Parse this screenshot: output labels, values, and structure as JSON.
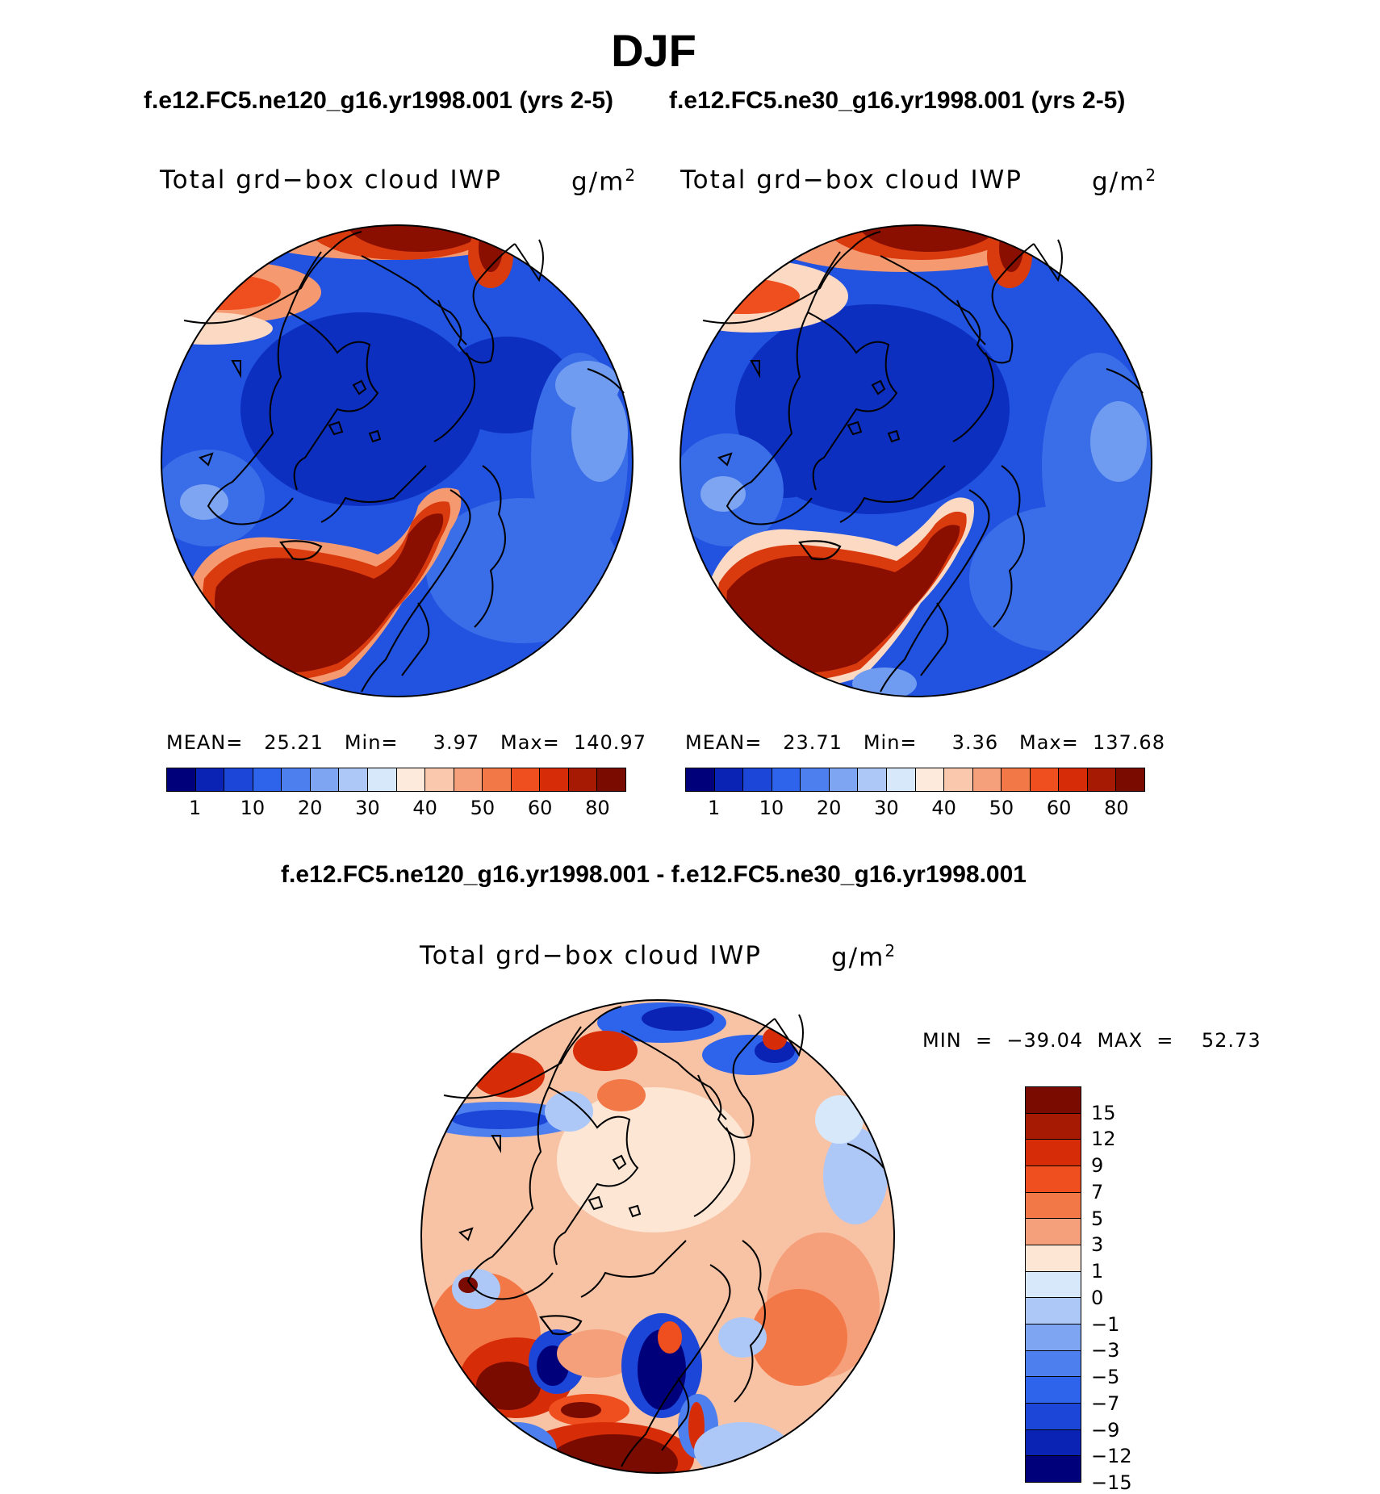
{
  "figure": {
    "title": "DJF",
    "case1_title": "f.e12.FC5.ne120_g16.yr1998.001 (yrs 2-5)",
    "case2_title": "f.e12.FC5.ne30_g16.yr1998.001 (yrs 2-5)",
    "diff_title": "f.e12.FC5.ne120_g16.yr1998.001 - f.e12.FC5.ne30_g16.yr1998.001"
  },
  "panels": [
    {
      "variable": "Total grd−box cloud IWP",
      "units_base": "g/m",
      "units_exp": "2",
      "stats": "MEAN=   25.21   Min=     3.97   Max=  140.97"
    },
    {
      "variable": "Total grd−box cloud IWP",
      "units_base": "g/m",
      "units_exp": "2",
      "stats": "MEAN=   23.71   Min=     3.36   Max=  137.68"
    },
    {
      "variable": "Total grd−box cloud IWP",
      "units_base": "g/m",
      "units_exp": "2",
      "stats": "MIN  =  −39.04  MAX  =    52.73"
    }
  ],
  "colorbar_abs": {
    "colors": [
      "#00007a",
      "#0a23b4",
      "#1c46d8",
      "#2e63eb",
      "#4d80ee",
      "#7ea5f2",
      "#adc8f6",
      "#d8e8fb",
      "#fdeadd",
      "#f9c8ad",
      "#f5a07a",
      "#f27848",
      "#ef4e1e",
      "#d72c08",
      "#a61a04",
      "#7a0b00"
    ],
    "ticks": [
      "1",
      "10",
      "20",
      "30",
      "40",
      "50",
      "60",
      "80"
    ]
  },
  "colorbar_diff": {
    "colors": [
      "#7a0b00",
      "#a61a04",
      "#d72c08",
      "#ef4e1e",
      "#f27848",
      "#f5a07a",
      "#fde6d4",
      "#d8e8fb",
      "#adc8f6",
      "#7ea5f2",
      "#4d80ee",
      "#2e63eb",
      "#1c46d8",
      "#0a23b4",
      "#00007a"
    ],
    "ticks": [
      "15",
      "12",
      "9",
      "7",
      "5",
      "3",
      "1",
      "0",
      "−1",
      "−3",
      "−5",
      "−7",
      "−9",
      "−12",
      "−15"
    ]
  },
  "map_colors": {
    "ocean_blue": "#2152e0",
    "deep_blue": "#0d2fc0",
    "light_blue": "#6f9cf0",
    "dark_red": "#8a0f00",
    "mid_red": "#d93a0e",
    "salmon": "#f59a70",
    "peach": "#fcd9c2",
    "diff_base": "#f8c3a4",
    "coast": "#000000"
  }
}
